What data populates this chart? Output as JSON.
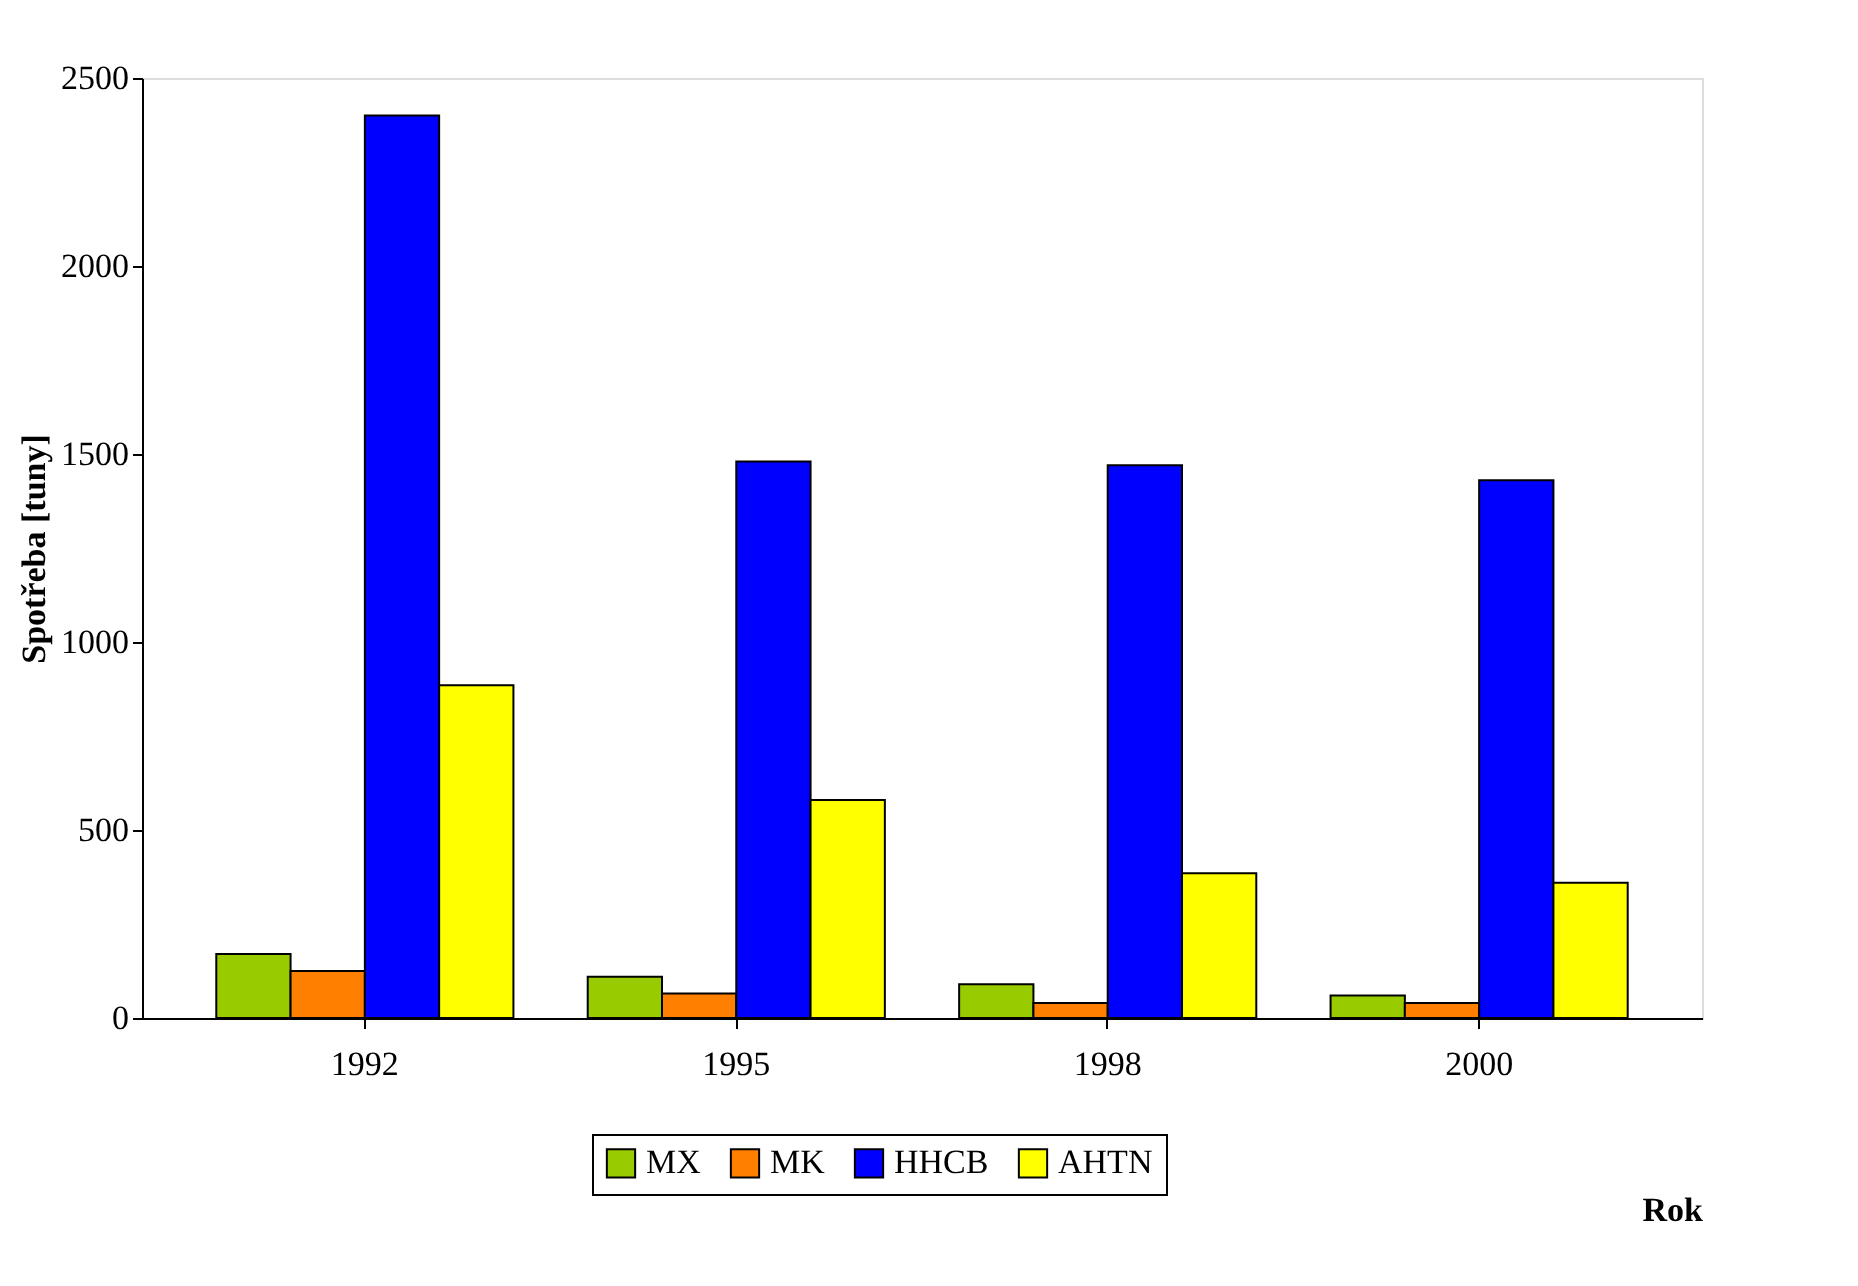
{
  "chart_data": {
    "type": "bar",
    "xlabel": "Rok",
    "ylabel": "Spotřeba [tuny]",
    "categories": [
      "1992",
      "1995",
      "1998",
      "2000"
    ],
    "series": [
      {
        "name": "MX",
        "color": "#99cc00",
        "values": [
          170,
          110,
          90,
          60
        ]
      },
      {
        "name": "MK",
        "color": "#ff8000",
        "values": [
          125,
          65,
          40,
          40
        ]
      },
      {
        "name": "HHCB",
        "color": "#0000ff",
        "values": [
          2400,
          1480,
          1470,
          1430
        ]
      },
      {
        "name": "AHTN",
        "color": "#ffff00",
        "values": [
          885,
          580,
          385,
          360
        ]
      }
    ],
    "ylim": [
      0,
      2500
    ],
    "yticks": [
      0,
      500,
      1000,
      1500,
      2000,
      2500
    ],
    "grid": false,
    "legend": "bottom"
  }
}
